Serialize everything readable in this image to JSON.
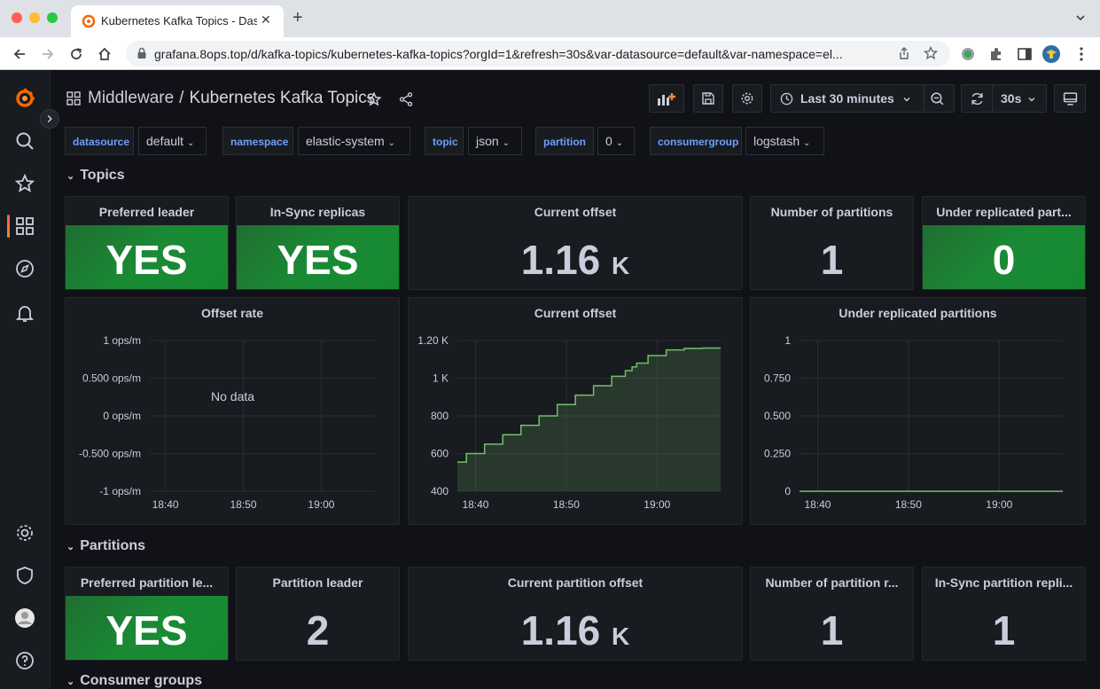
{
  "browser": {
    "tab_title": "Kubernetes Kafka Topics - Das",
    "url": "grafana.8ops.top/d/kafka-topics/kubernetes-kafka-topics?orgId=1&refresh=30s&var-datasource=default&var-namespace=el..."
  },
  "header": {
    "folder": "Middleware",
    "separator": "/",
    "title": "Kubernetes Kafka Topics",
    "time_range": "Last 30 minutes",
    "refresh_interval": "30s"
  },
  "variables": [
    {
      "label": "datasource",
      "value": "default"
    },
    {
      "label": "namespace",
      "value": "elastic-system"
    },
    {
      "label": "topic",
      "value": "json"
    },
    {
      "label": "partition",
      "value": "0"
    },
    {
      "label": "consumergroup",
      "value": "logstash"
    }
  ],
  "rows": {
    "topics": "Topics",
    "partitions": "Partitions",
    "consumer_groups": "Consumer groups"
  },
  "topic_stats": {
    "preferred_leader": {
      "title": "Preferred leader",
      "value": "YES"
    },
    "in_sync": {
      "title": "In-Sync replicas",
      "value": "YES"
    },
    "current_offset": {
      "title": "Current offset",
      "value": "1.16",
      "unit": "K"
    },
    "num_partitions": {
      "title": "Number of partitions",
      "value": "1"
    },
    "under_replicated": {
      "title": "Under replicated part...",
      "value": "0"
    }
  },
  "partition_stats": {
    "preferred_leader": {
      "title": "Preferred partition le...",
      "value": "YES"
    },
    "leader": {
      "title": "Partition leader",
      "value": "2"
    },
    "current_offset": {
      "title": "Current partition offset",
      "value": "1.16",
      "unit": "K"
    },
    "num_replicas": {
      "title": "Number of partition r...",
      "value": "1"
    },
    "in_sync": {
      "title": "In-Sync partition repli...",
      "value": "1"
    }
  },
  "colors": {
    "ok_green": "#1a8a35",
    "series_green": "#73bf69",
    "link_blue": "#6e9fff",
    "accent_orange": "#f55f3e"
  },
  "chart_data": [
    {
      "type": "line",
      "title": "Offset rate",
      "no_data_text": "No data",
      "y_ticks": [
        "1 ops/m",
        "0.500 ops/m",
        "0 ops/m",
        "-0.500 ops/m",
        "-1 ops/m"
      ],
      "x_ticks": [
        "18:40",
        "18:50",
        "19:00"
      ],
      "ylim": [
        -1,
        1
      ],
      "series": []
    },
    {
      "type": "area",
      "title": "Current offset",
      "y_ticks": [
        "1.20 K",
        "1 K",
        "800",
        "600",
        "400"
      ],
      "x_ticks": [
        "18:40",
        "18:50",
        "19:00"
      ],
      "ylim": [
        400,
        1200
      ],
      "x_range_min": [
        0,
        29
      ],
      "series": [
        {
          "x": [
            0,
            2,
            4,
            6,
            8,
            10,
            12,
            14,
            16,
            18,
            19,
            19.5,
            20,
            22,
            24,
            26,
            28,
            29
          ],
          "values": [
            555,
            600,
            650,
            700,
            750,
            800,
            860,
            910,
            960,
            1010,
            1040,
            1060,
            1080,
            1120,
            1150,
            1158,
            1160,
            1160
          ]
        }
      ]
    },
    {
      "type": "line",
      "title": "Under replicated partitions",
      "y_ticks": [
        "1",
        "0.750",
        "0.500",
        "0.250",
        "0"
      ],
      "x_ticks": [
        "18:40",
        "18:50",
        "19:00"
      ],
      "ylim": [
        0,
        1
      ],
      "series": [
        {
          "x": [
            0,
            29
          ],
          "values": [
            0,
            0
          ]
        }
      ]
    }
  ]
}
